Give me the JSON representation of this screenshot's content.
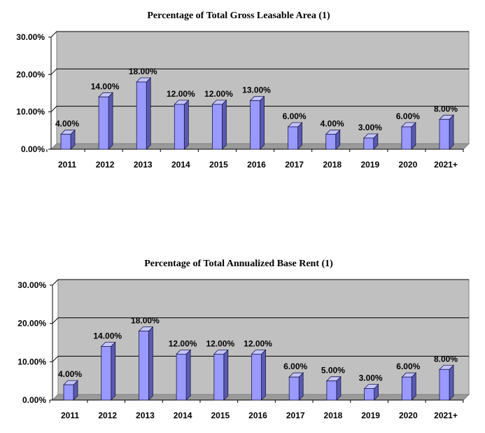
{
  "chart_data": [
    {
      "type": "bar",
      "title": "Percentage of Total Gross Leasable Area (1)",
      "categories": [
        "2011",
        "2012",
        "2013",
        "2014",
        "2015",
        "2016",
        "2017",
        "2018",
        "2019",
        "2020",
        "2021+"
      ],
      "values": [
        4.0,
        14.0,
        18.0,
        12.0,
        12.0,
        13.0,
        6.0,
        4.0,
        3.0,
        6.0,
        8.0
      ],
      "data_labels": [
        "4.00%",
        "14.00%",
        "18.00%",
        "12.00%",
        "12.00%",
        "13.00%",
        "6.00%",
        "4.00%",
        "3.00%",
        "6.00%",
        "8.00%"
      ],
      "yticks": [
        0,
        10,
        20,
        30
      ],
      "ytick_labels": [
        "0.00%",
        "10.00%",
        "20.00%",
        "30.00%"
      ],
      "ylim": [
        0,
        30
      ],
      "xlabel": "",
      "ylabel": "",
      "grid": true,
      "legend": "none",
      "colors": {
        "bar_front": "#9999ff",
        "bar_side": "#5a5ab0",
        "bar_top": "#c4c4ff",
        "plot_bg": "#c0c0c0",
        "gridline": "#000000"
      }
    },
    {
      "type": "bar",
      "title": "Percentage of Total Annualized Base Rent (1)",
      "categories": [
        "2011",
        "2012",
        "2013",
        "2014",
        "2015",
        "2016",
        "2017",
        "2018",
        "2019",
        "2020",
        "2021+"
      ],
      "values": [
        4.0,
        14.0,
        18.0,
        12.0,
        12.0,
        12.0,
        6.0,
        5.0,
        3.0,
        6.0,
        8.0
      ],
      "data_labels": [
        "4.00%",
        "14.00%",
        "18.00%",
        "12.00%",
        "12.00%",
        "12.00%",
        "6.00%",
        "5.00%",
        "3.00%",
        "6.00%",
        "8.00%"
      ],
      "yticks": [
        0,
        10,
        20,
        30
      ],
      "ytick_labels": [
        "0.00%",
        "10.00%",
        "20.00%",
        "30.00%"
      ],
      "ylim": [
        0,
        30
      ],
      "xlabel": "",
      "ylabel": "",
      "grid": true,
      "legend": "none",
      "colors": {
        "bar_front": "#9999ff",
        "bar_side": "#5a5ab0",
        "bar_top": "#c4c4ff",
        "plot_bg": "#c0c0c0",
        "gridline": "#000000"
      }
    }
  ]
}
